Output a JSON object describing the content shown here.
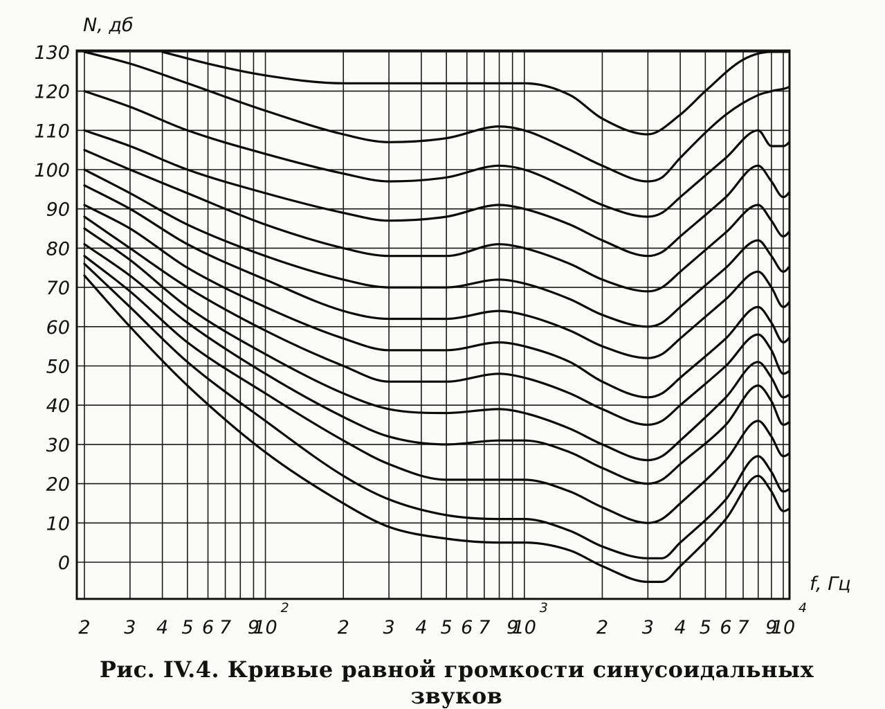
{
  "caption": "Рис. IV.4. Кривые равной громкости синусоидальных звуков",
  "chart_data": {
    "type": "line",
    "title": "",
    "ylabel": "N, дб",
    "xlabel": "f, Гц",
    "xscale": "log",
    "xlim": [
      20,
      12000
    ],
    "ylim": [
      -10,
      130
    ],
    "grid": true,
    "yticks": [
      130,
      120,
      110,
      100,
      90,
      80,
      70,
      60,
      50,
      40,
      30,
      20,
      10,
      0
    ],
    "ytick_labels": [
      "130",
      "120",
      "110",
      "100",
      "90",
      "80",
      "70",
      "60",
      "50",
      "40",
      "30",
      "20",
      "10",
      "0"
    ],
    "xticks": [
      {
        "value": 20,
        "label": "2"
      },
      {
        "value": 30,
        "label": "3"
      },
      {
        "value": 40,
        "label": "4"
      },
      {
        "value": 50,
        "label": "5"
      },
      {
        "value": 60,
        "label": "6"
      },
      {
        "value": 70,
        "label": "7"
      },
      {
        "value": 90,
        "label": "9"
      },
      {
        "value": 100,
        "label": "10",
        "exponent": "2"
      },
      {
        "value": 200,
        "label": "2"
      },
      {
        "value": 300,
        "label": "3"
      },
      {
        "value": 400,
        "label": "4"
      },
      {
        "value": 500,
        "label": "5"
      },
      {
        "value": 600,
        "label": "6"
      },
      {
        "value": 700,
        "label": "7"
      },
      {
        "value": 900,
        "label": "9"
      },
      {
        "value": 1000,
        "label": "10",
        "exponent": "3"
      },
      {
        "value": 2000,
        "label": "2"
      },
      {
        "value": 3000,
        "label": "3"
      },
      {
        "value": 4000,
        "label": "4"
      },
      {
        "value": 5000,
        "label": "5"
      },
      {
        "value": 6000,
        "label": "6"
      },
      {
        "value": 7000,
        "label": "7"
      },
      {
        "value": 9000,
        "label": "9"
      },
      {
        "value": 10000,
        "label": "10",
        "exponent": "4"
      }
    ],
    "gridlines_x": [
      20,
      30,
      40,
      50,
      60,
      70,
      80,
      90,
      100,
      200,
      300,
      400,
      500,
      600,
      700,
      800,
      900,
      1000,
      2000,
      3000,
      4000,
      5000,
      6000,
      7000,
      8000,
      9000,
      10000
    ],
    "gridlines_y": [
      130,
      120,
      110,
      100,
      90,
      80,
      70,
      60,
      50,
      40,
      30,
      20,
      10,
      0
    ],
    "series": [
      {
        "x": [
          40,
          60,
          100,
          200,
          400,
          700,
          1000,
          1500,
          2000,
          3000,
          4000,
          5000,
          7000,
          9000,
          12000
        ],
        "y": [
          130,
          127,
          124,
          122,
          122,
          122,
          122,
          119,
          113,
          109,
          114,
          120,
          128,
          130,
          130
        ]
      },
      {
        "x": [
          20,
          30,
          50,
          100,
          200,
          300,
          500,
          800,
          1000,
          1500,
          2000,
          3000,
          3400,
          4000,
          6000,
          8000,
          9000,
          11000,
          12000
        ],
        "y": [
          130,
          127,
          122,
          115,
          109,
          107,
          108,
          111,
          110,
          105,
          101,
          97,
          98,
          103,
          114,
          119,
          120,
          122,
          126
        ]
      },
      {
        "x": [
          20,
          30,
          50,
          100,
          200,
          300,
          500,
          800,
          1000,
          1500,
          2000,
          3000,
          3400,
          4000,
          6000,
          8000,
          9000,
          10000,
          12000
        ],
        "y": [
          120,
          116,
          110,
          104,
          99,
          97,
          98,
          101,
          100,
          95,
          91,
          88,
          89,
          93,
          103,
          110,
          106,
          106,
          113
        ]
      },
      {
        "x": [
          20,
          30,
          50,
          100,
          200,
          300,
          500,
          800,
          1000,
          1500,
          2000,
          3000,
          3400,
          4000,
          6000,
          8000,
          9000,
          10000,
          11000,
          12000
        ],
        "y": [
          110,
          106,
          100,
          94,
          89,
          87,
          88,
          91,
          90,
          86,
          82,
          78,
          79,
          83,
          93,
          101,
          97,
          93,
          96,
          100
        ]
      },
      {
        "x": [
          20,
          30,
          50,
          100,
          200,
          300,
          500,
          800,
          1000,
          1500,
          2000,
          3000,
          3400,
          4000,
          6000,
          8000,
          9000,
          10000,
          11000,
          12000
        ],
        "y": [
          105,
          100,
          94,
          86,
          80,
          78,
          78,
          81,
          80,
          76,
          72,
          69,
          70,
          74,
          84,
          91,
          87,
          83,
          86,
          90
        ]
      },
      {
        "x": [
          20,
          30,
          50,
          100,
          200,
          300,
          500,
          800,
          1000,
          1500,
          2000,
          3000,
          3400,
          4000,
          6000,
          8000,
          9000,
          10000,
          11000,
          12000
        ],
        "y": [
          100,
          94,
          86,
          78,
          72,
          70,
          70,
          72,
          71,
          67,
          63,
          60,
          61,
          65,
          75,
          82,
          78,
          74,
          77,
          80
        ]
      },
      {
        "x": [
          20,
          30,
          50,
          100,
          200,
          300,
          500,
          800,
          1000,
          1500,
          2000,
          3000,
          3400,
          4000,
          6000,
          8000,
          9000,
          10000,
          11000,
          12000
        ],
        "y": [
          96,
          90,
          81,
          72,
          64,
          62,
          62,
          64,
          63,
          59,
          55,
          52,
          53,
          57,
          67,
          74,
          70,
          65,
          68,
          72
        ]
      },
      {
        "x": [
          20,
          30,
          50,
          100,
          200,
          300,
          500,
          800,
          1000,
          1500,
          2000,
          3000,
          3400,
          4000,
          6000,
          8000,
          9000,
          10000,
          11000,
          12000
        ],
        "y": [
          91,
          85,
          75,
          65,
          57,
          54,
          54,
          56,
          55,
          51,
          46,
          42,
          43,
          47,
          57,
          65,
          61,
          56,
          59,
          63
        ]
      },
      {
        "x": [
          20,
          30,
          50,
          100,
          200,
          300,
          500,
          800,
          1000,
          1500,
          2000,
          3000,
          3400,
          4000,
          6000,
          8000,
          9000,
          10000,
          11000,
          12000
        ],
        "y": [
          88,
          80,
          70,
          59,
          50,
          46,
          46,
          48,
          47,
          43,
          39,
          35,
          36,
          40,
          50,
          58,
          54,
          48,
          50,
          54
        ]
      },
      {
        "x": [
          20,
          30,
          50,
          100,
          200,
          300,
          500,
          800,
          1000,
          1500,
          2000,
          3000,
          3400,
          4000,
          6000,
          8000,
          9000,
          10000,
          11000,
          12000
        ],
        "y": [
          85,
          77,
          65,
          53,
          43,
          39,
          38,
          39,
          38,
          34,
          30,
          26,
          27,
          31,
          42,
          51,
          47,
          42,
          44,
          48
        ]
      },
      {
        "x": [
          20,
          30,
          50,
          100,
          200,
          300,
          500,
          800,
          1000,
          1500,
          2000,
          3000,
          3400,
          4000,
          6000,
          8000,
          9000,
          10000,
          11000,
          12000
        ],
        "y": [
          81,
          73,
          61,
          48,
          37,
          32,
          30,
          31,
          31,
          28,
          24,
          20,
          21,
          25,
          35,
          45,
          41,
          35,
          37,
          41
        ]
      },
      {
        "x": [
          20,
          30,
          50,
          100,
          200,
          300,
          500,
          800,
          1000,
          1500,
          2000,
          3000,
          3400,
          4000,
          6000,
          8000,
          9000,
          10000,
          11000,
          12000
        ],
        "y": [
          78,
          69,
          56,
          43,
          31,
          25,
          21,
          21,
          21,
          18,
          14,
          10,
          11,
          15,
          26,
          36,
          32,
          27,
          29,
          33
        ]
      },
      {
        "x": [
          20,
          30,
          50,
          100,
          200,
          300,
          500,
          800,
          1000,
          1500,
          2000,
          3000,
          3400,
          4000,
          6000,
          8000,
          9000,
          10000,
          11000,
          12000
        ],
        "y": [
          76,
          65,
          51,
          36,
          22,
          16,
          12,
          11,
          11,
          8,
          4,
          1,
          1,
          5,
          16,
          27,
          23,
          18,
          20,
          25
        ]
      },
      {
        "x": [
          20,
          30,
          50,
          100,
          200,
          300,
          500,
          800,
          1000,
          1500,
          2000,
          3000,
          3400,
          4000,
          6000,
          8000,
          9000,
          10000,
          11000,
          12000
        ],
        "y": [
          73,
          60,
          45,
          28,
          15,
          9,
          6,
          5,
          5,
          3,
          -1,
          -5,
          -5,
          -1,
          11,
          22,
          18,
          13,
          15,
          20
        ]
      }
    ]
  }
}
